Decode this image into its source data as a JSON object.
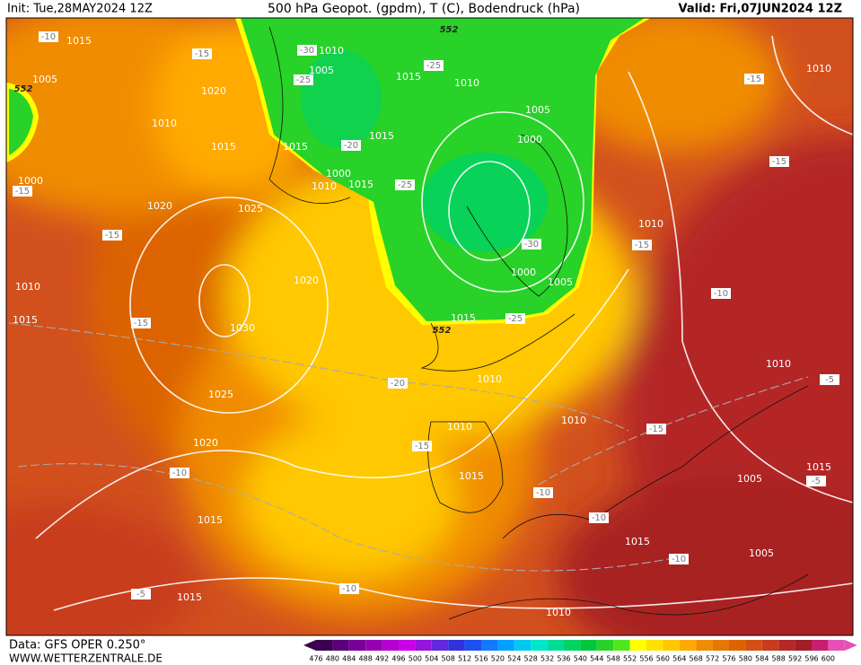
{
  "header": {
    "init": "Init: Tue,28MAY2024 12Z",
    "title": "500 hPa Geopot. (gpdm), T (C), Bodendruck (hPa)",
    "valid": "Valid: Fri,07JUN2024 12Z"
  },
  "footer": {
    "source": "Data: GFS OPER 0.250°",
    "site": "WWW.WETTERZENTRALE.DE"
  },
  "scale": {
    "labels": [
      476,
      480,
      484,
      488,
      492,
      496,
      500,
      504,
      508,
      512,
      516,
      520,
      524,
      528,
      532,
      536,
      540,
      544,
      548,
      552,
      556,
      560,
      564,
      568,
      572,
      576,
      580,
      584,
      588,
      592,
      596,
      600
    ],
    "colors": [
      "#3c0050",
      "#5a0078",
      "#780096",
      "#9600b4",
      "#b400d2",
      "#c800e6",
      "#9614dc",
      "#6428dc",
      "#3232dc",
      "#1e50f0",
      "#1478ff",
      "#00a0ff",
      "#00c8f0",
      "#00e6c8",
      "#00dc96",
      "#00d264",
      "#00c83c",
      "#28d228",
      "#50e61e",
      "#ffff00",
      "#ffe100",
      "#ffc800",
      "#ffaa00",
      "#f08c00",
      "#e67800",
      "#dc6400",
      "#d25014",
      "#c83c1e",
      "#b42828",
      "#a01e28",
      "#c81e6e",
      "#e650b4"
    ]
  },
  "map": {
    "pressure_labels": [
      1015,
      1005,
      1020,
      1010,
      1015,
      1015,
      1010,
      1005,
      1015,
      1010,
      1005,
      1000,
      1015,
      1000,
      1010,
      1015,
      1000,
      1005,
      1015,
      1010,
      1000,
      1020,
      1025,
      1010,
      1015,
      1020,
      1030,
      1025,
      1020,
      1015,
      1010,
      1010,
      1015,
      1010,
      1010,
      1010,
      1005,
      1015,
      1015,
      1005,
      1015,
      1010
    ],
    "temperature_labels": [
      -10,
      -15,
      -30,
      -25,
      -25,
      -20,
      -15,
      -15,
      -25,
      -30,
      -15,
      -15,
      -25,
      -15,
      -15,
      -10,
      -20,
      -15,
      -10,
      -15,
      -10,
      -10,
      -10,
      -10,
      -5,
      -5,
      -5
    ],
    "height_labels": [
      552,
      552,
      552
    ]
  }
}
